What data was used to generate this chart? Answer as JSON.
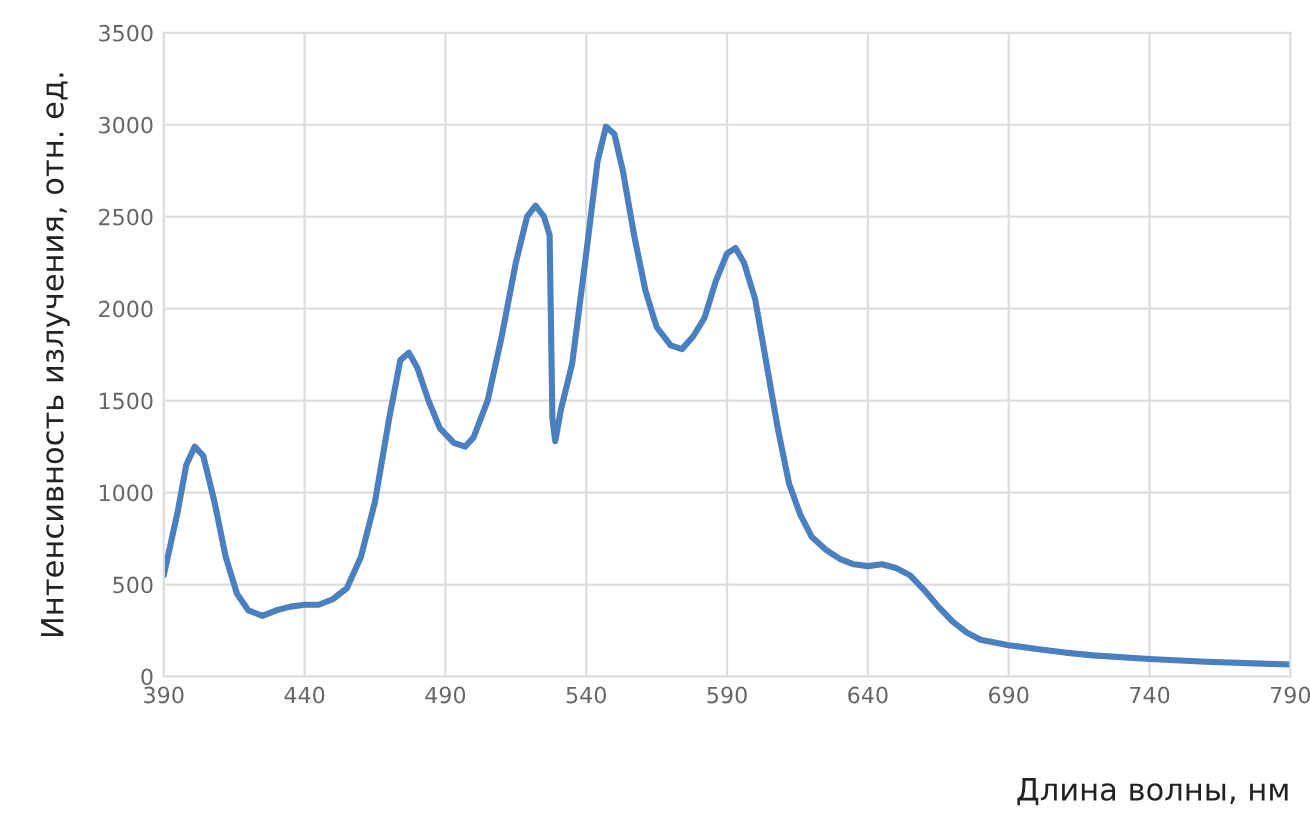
{
  "chart_data": {
    "type": "line",
    "xlabel": "Длина волны, нм",
    "ylabel": "Интенсивность излучения, отн. ед.",
    "xlim": [
      390,
      790
    ],
    "xticks": [
      390,
      440,
      490,
      540,
      590,
      640,
      690,
      740,
      790
    ],
    "ylim": [
      0,
      3500
    ],
    "yticks": [
      0,
      500,
      1000,
      1500,
      2000,
      2500,
      3000,
      3500
    ],
    "grid": true,
    "marker": "none",
    "line_style": "solid",
    "series": [
      {
        "color": "#4a7fc0",
        "x": [
          390,
          395,
          398,
          401,
          404,
          408,
          412,
          416,
          420,
          425,
          430,
          435,
          440,
          445,
          450,
          455,
          460,
          465,
          470,
          474,
          477,
          480,
          484,
          488,
          493,
          497,
          500,
          505,
          510,
          515,
          519,
          522,
          525,
          527,
          528,
          529,
          531,
          535,
          540,
          544,
          547,
          550,
          553,
          557,
          561,
          565,
          570,
          574,
          578,
          582,
          586,
          590,
          593,
          596,
          600,
          604,
          608,
          612,
          616,
          620,
          625,
          630,
          635,
          640,
          645,
          650,
          655,
          660,
          665,
          670,
          675,
          680,
          690,
          700,
          710,
          720,
          740,
          760,
          780,
          790
        ],
        "values": [
          550,
          900,
          1150,
          1250,
          1200,
          950,
          650,
          450,
          360,
          330,
          360,
          380,
          390,
          390,
          420,
          480,
          650,
          950,
          1400,
          1720,
          1760,
          1680,
          1500,
          1350,
          1270,
          1250,
          1300,
          1500,
          1850,
          2250,
          2500,
          2560,
          2500,
          2400,
          1400,
          1280,
          1450,
          1700,
          2300,
          2800,
          2990,
          2950,
          2750,
          2400,
          2100,
          1900,
          1800,
          1780,
          1850,
          1950,
          2150,
          2300,
          2330,
          2250,
          2050,
          1700,
          1350,
          1050,
          880,
          760,
          690,
          640,
          610,
          600,
          610,
          590,
          550,
          470,
          380,
          300,
          240,
          200,
          170,
          150,
          130,
          115,
          95,
          80,
          70,
          65
        ]
      }
    ]
  }
}
